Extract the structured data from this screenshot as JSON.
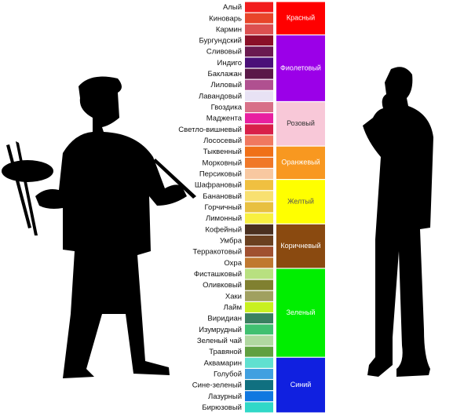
{
  "groups": [
    {
      "name": "Красный",
      "color": "#ff0000",
      "text_color": "#ffffff",
      "items": [
        {
          "name": "Алый",
          "color": "#f21c1c"
        },
        {
          "name": "Киноварь",
          "color": "#e8452a"
        },
        {
          "name": "Кармин",
          "color": "#dc5050"
        }
      ]
    },
    {
      "name": "Фиолетовый",
      "color": "#9b00e8",
      "text_color": "#ffffff",
      "items": [
        {
          "name": "Бургундский",
          "color": "#8a1028"
        },
        {
          "name": "Сливовый",
          "color": "#6a1a50"
        },
        {
          "name": "Индиго",
          "color": "#4a1078"
        },
        {
          "name": "Баклажан",
          "color": "#5a1848"
        },
        {
          "name": "Лиловый",
          "color": "#b05090"
        },
        {
          "name": "Лавандовый",
          "color": "#e8e2f4"
        }
      ]
    },
    {
      "name": "Розовый",
      "color": "#f8c8d8",
      "text_color": "#333333",
      "items": [
        {
          "name": "Гвоздика",
          "color": "#d87088"
        },
        {
          "name": "Маджента",
          "color": "#e820a0"
        },
        {
          "name": "Светло-вишневый",
          "color": "#d8204a"
        },
        {
          "name": "Лососевый",
          "color": "#f07860"
        }
      ]
    },
    {
      "name": "Оранжевый",
      "color": "#f89820",
      "text_color": "#ffffff",
      "items": [
        {
          "name": "Тыквенный",
          "color": "#f07018"
        },
        {
          "name": "Морковный",
          "color": "#f07828"
        },
        {
          "name": "Персиковый",
          "color": "#f8c8a0"
        }
      ]
    },
    {
      "name": "Желтый",
      "color": "#ffff00",
      "text_color": "#555555",
      "items": [
        {
          "name": "Шафрановый",
          "color": "#f0c040"
        },
        {
          "name": "Банановый",
          "color": "#f8e070"
        },
        {
          "name": "Горчичный",
          "color": "#e8c040"
        },
        {
          "name": "Лимонный",
          "color": "#f8f040"
        }
      ]
    },
    {
      "name": "Коричневый",
      "color": "#8a4a10",
      "text_color": "#ffffff",
      "items": [
        {
          "name": "Кофейный",
          "color": "#4a3020"
        },
        {
          "name": "Умбра",
          "color": "#6a4020"
        },
        {
          "name": "Терракотовый",
          "color": "#a05030"
        },
        {
          "name": "Охра",
          "color": "#c07830"
        }
      ]
    },
    {
      "name": "Зеленый",
      "color": "#00ee00",
      "text_color": "#ffffff",
      "items": [
        {
          "name": "Фисташковый",
          "color": "#b8e080"
        },
        {
          "name": "Оливковый",
          "color": "#808030"
        },
        {
          "name": "Хаки",
          "color": "#a0a060"
        },
        {
          "name": "Лайм",
          "color": "#c8f020"
        },
        {
          "name": "Виридиан",
          "color": "#3a8060"
        },
        {
          "name": "Изумрудный",
          "color": "#40c070"
        },
        {
          "name": "Зеленый чай",
          "color": "#b0d8a0"
        },
        {
          "name": "Травяной",
          "color": "#60a040"
        }
      ]
    },
    {
      "name": "Синий",
      "color": "#1020e0",
      "text_color": "#ffffff",
      "items": [
        {
          "name": "Аквамарин",
          "color": "#60e0d0"
        },
        {
          "name": "Голубой",
          "color": "#40a0e0"
        },
        {
          "name": "Сине-зеленый",
          "color": "#107080"
        },
        {
          "name": "Лазурный",
          "color": "#1078e0"
        },
        {
          "name": "Бирюзовый",
          "color": "#30d8c8"
        }
      ]
    }
  ]
}
